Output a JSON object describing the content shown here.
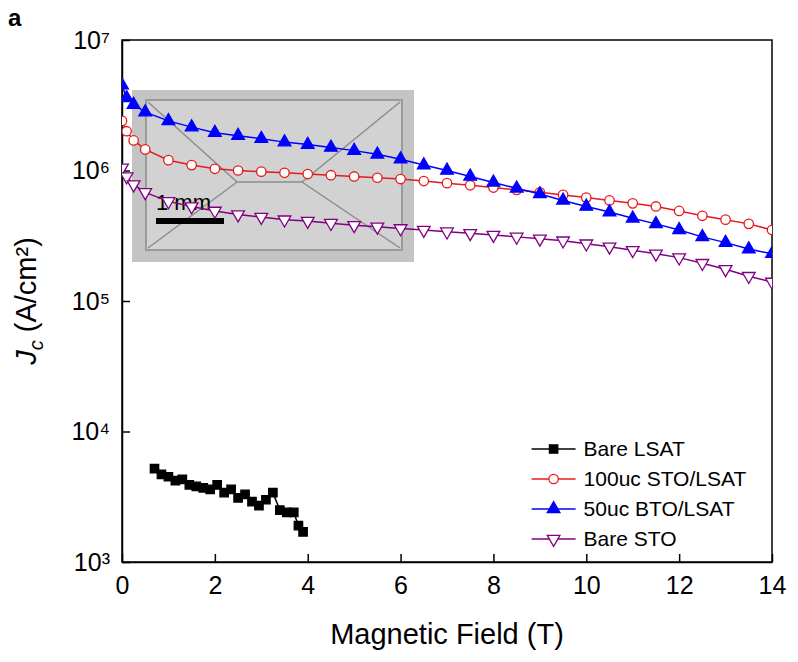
{
  "chart_data": {
    "type": "line",
    "panel_label": "a",
    "x_label": "Magnetic Field (T)",
    "y_label": "Jc (A/cm²)",
    "log": "y",
    "grid": false,
    "legend": "lower right",
    "xlim": [
      0,
      14
    ],
    "xticks": [
      0,
      2,
      4,
      6,
      8,
      10,
      12,
      14
    ],
    "ylim": [
      1000,
      10000000
    ],
    "yticks": [
      {
        "value": 1000,
        "label": "10³"
      },
      {
        "value": 10000,
        "label": "10⁴"
      },
      {
        "value": 100000,
        "label": "10⁵"
      },
      {
        "value": 1000000,
        "label": "10⁶"
      },
      {
        "value": 10000000,
        "label": "10⁷"
      }
    ],
    "inset_scale_label": "1 mm",
    "series": [
      {
        "name": "Bare LSAT",
        "color": "#000000",
        "marker": "square",
        "line_style": "solid",
        "x": [
          0.7,
          0.85,
          1.0,
          1.15,
          1.3,
          1.45,
          1.6,
          1.75,
          1.9,
          2.05,
          2.2,
          2.35,
          2.5,
          2.65,
          2.8,
          2.95,
          3.1,
          3.25,
          3.4,
          3.55,
          3.7,
          3.8,
          3.9
        ],
        "values": [
          5200,
          4700,
          4500,
          4200,
          4300,
          3900,
          3800,
          3700,
          3600,
          3900,
          3400,
          3600,
          3100,
          3300,
          2900,
          2700,
          3000,
          3400,
          2500,
          2400,
          2400,
          1900,
          1700
        ]
      },
      {
        "name": "100uc STO/LSAT",
        "color": "#e41a1c",
        "marker": "open-circle",
        "line_style": "solid",
        "x": [
          0,
          0.1,
          0.25,
          0.5,
          1,
          1.5,
          2,
          2.5,
          3,
          3.5,
          4,
          4.5,
          5,
          5.5,
          6,
          6.5,
          7,
          7.5,
          8,
          8.5,
          9,
          9.5,
          10,
          10.5,
          11,
          11.5,
          12,
          12.5,
          13,
          13.5,
          14
        ],
        "values": [
          2400000,
          2000000,
          1700000,
          1450000,
          1200000,
          1100000,
          1030000,
          1000000,
          980000,
          960000,
          940000,
          920000,
          900000,
          880000,
          860000,
          830000,
          800000,
          770000,
          740000,
          710000,
          680000,
          650000,
          620000,
          590000,
          560000,
          530000,
          490000,
          450000,
          420000,
          390000,
          350000
        ]
      },
      {
        "name": "50uc BTO/LSAT",
        "color": "#0000ff",
        "marker": "triangle-up",
        "line_style": "solid",
        "x": [
          0,
          0.1,
          0.25,
          0.5,
          1,
          1.5,
          2,
          2.5,
          3,
          3.5,
          4,
          4.5,
          5,
          5.5,
          6,
          6.5,
          7,
          7.5,
          8,
          8.5,
          9,
          9.5,
          10,
          10.5,
          11,
          11.5,
          12,
          12.5,
          13,
          13.5,
          14
        ],
        "values": [
          4500000,
          3600000,
          3200000,
          2800000,
          2400000,
          2150000,
          1950000,
          1850000,
          1750000,
          1650000,
          1580000,
          1500000,
          1420000,
          1330000,
          1220000,
          1100000,
          1000000,
          900000,
          810000,
          730000,
          660000,
          590000,
          530000,
          480000,
          430000,
          390000,
          350000,
          310000,
          280000,
          250000,
          230000
        ]
      },
      {
        "name": "Bare STO",
        "color": "#800080",
        "marker": "open-triangle-down",
        "line_style": "solid",
        "x": [
          0,
          0.1,
          0.25,
          0.5,
          1,
          1.5,
          2,
          2.5,
          3,
          3.5,
          4,
          4.5,
          5,
          5.5,
          6,
          6.5,
          7,
          7.5,
          8,
          8.5,
          9,
          9.5,
          10,
          10.5,
          11,
          11.5,
          12,
          12.5,
          13,
          13.5,
          14
        ],
        "values": [
          1050000,
          900000,
          780000,
          680000,
          580000,
          530000,
          490000,
          460000,
          440000,
          420000,
          410000,
          395000,
          380000,
          370000,
          360000,
          350000,
          340000,
          330000,
          320000,
          310000,
          300000,
          290000,
          275000,
          260000,
          245000,
          230000,
          215000,
          195000,
          175000,
          155000,
          140000
        ]
      }
    ]
  }
}
